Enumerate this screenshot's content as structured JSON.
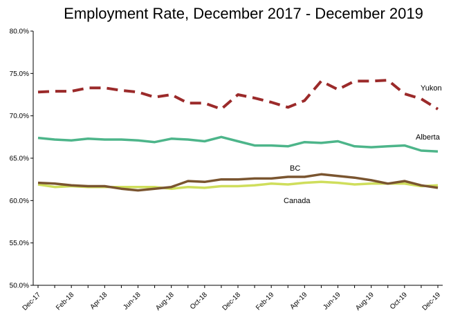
{
  "chart_data": {
    "type": "line",
    "title": "Employment Rate, December 2017 - December 2019",
    "xlabel": "",
    "ylabel": "",
    "ylim": [
      50,
      80
    ],
    "yticks": [
      "50.0%",
      "55.0%",
      "60.0%",
      "65.0%",
      "70.0%",
      "75.0%",
      "80.0%"
    ],
    "x": [
      "Dec-17",
      "Jan-18",
      "Feb-18",
      "Mar-18",
      "Apr-18",
      "May-18",
      "Jun-18",
      "Jul-18",
      "Aug-18",
      "Sep-18",
      "Oct-18",
      "Nov-18",
      "Dec-18",
      "Jan-19",
      "Feb-19",
      "Mar-19",
      "Apr-19",
      "May-19",
      "Jun-19",
      "Jul-19",
      "Aug-19",
      "Sep-19",
      "Oct-19",
      "Nov-19",
      "Dec-19"
    ],
    "xtick_labels": [
      "Dec-17",
      "Feb-18",
      "Apr-18",
      "Jun-18",
      "Aug-18",
      "Oct-18",
      "Dec-18",
      "Feb-19",
      "Apr-19",
      "Jun-19",
      "Aug-19",
      "Oct-19",
      "Dec-19"
    ],
    "grid": false,
    "legend": "inline labels",
    "series": [
      {
        "name": "Yukon",
        "color": "#9B2A2A",
        "style": "dashed",
        "values": [
          72.8,
          72.9,
          72.9,
          73.3,
          73.3,
          73.0,
          72.8,
          72.2,
          72.5,
          71.5,
          71.5,
          70.8,
          72.5,
          72.1,
          71.6,
          71.0,
          71.8,
          74.1,
          73.1,
          74.1,
          74.1,
          74.2,
          72.6,
          72.0,
          70.8
        ]
      },
      {
        "name": "Alberta",
        "color": "#4DB58A",
        "style": "solid",
        "values": [
          67.4,
          67.2,
          67.1,
          67.3,
          67.2,
          67.2,
          67.1,
          66.9,
          67.3,
          67.2,
          67.0,
          67.5,
          67.0,
          66.5,
          66.5,
          66.4,
          66.9,
          66.8,
          67.0,
          66.4,
          66.3,
          66.4,
          66.5,
          65.9,
          65.8
        ]
      },
      {
        "name": "BC",
        "color": "#7A5530",
        "style": "solid",
        "values": [
          62.1,
          62.0,
          61.8,
          61.7,
          61.7,
          61.4,
          61.2,
          61.4,
          61.6,
          62.3,
          62.2,
          62.5,
          62.5,
          62.6,
          62.6,
          62.8,
          62.8,
          63.1,
          62.9,
          62.7,
          62.4,
          62.0,
          62.3,
          61.8,
          61.5
        ]
      },
      {
        "name": "Canada",
        "color": "#CFDE5C",
        "style": "solid",
        "values": [
          61.9,
          61.6,
          61.7,
          61.6,
          61.6,
          61.6,
          61.6,
          61.6,
          61.4,
          61.6,
          61.5,
          61.7,
          61.7,
          61.8,
          62.0,
          61.9,
          62.1,
          62.2,
          62.1,
          61.9,
          62.0,
          62.0,
          62.0,
          61.7,
          61.8
        ]
      }
    ]
  }
}
